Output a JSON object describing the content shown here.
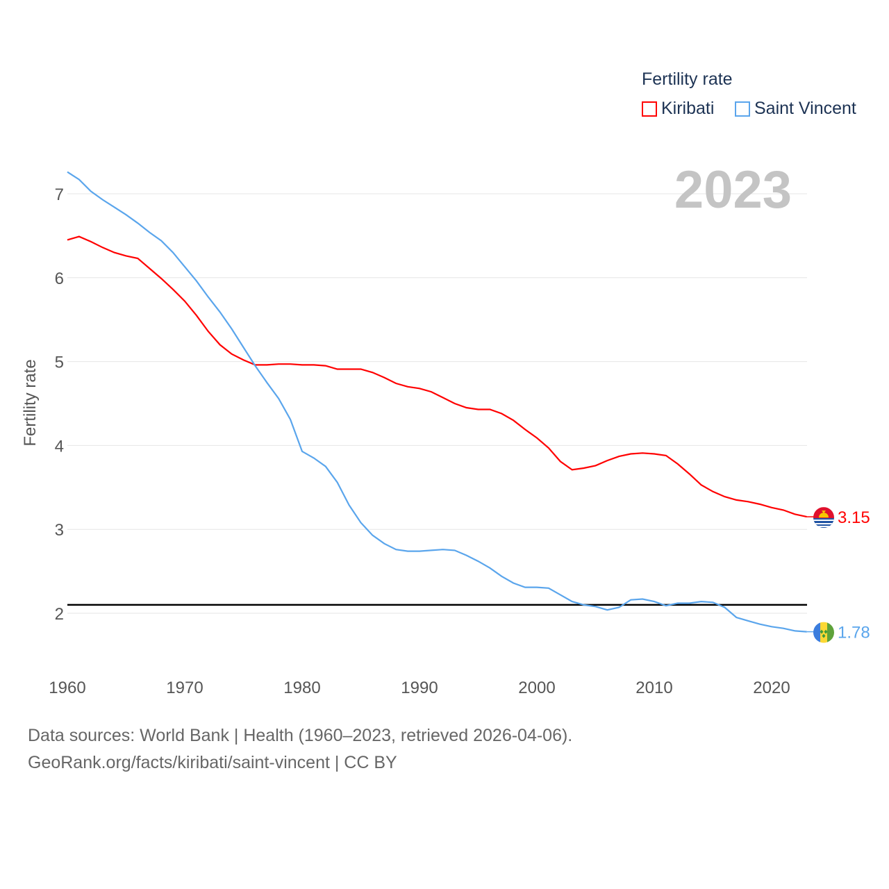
{
  "chart_data": {
    "type": "line",
    "title": "",
    "year_label": "2023",
    "xlabel": "",
    "ylabel": "Fertility rate",
    "xlim": [
      1960,
      2023
    ],
    "ylim": [
      1.5,
      7.5
    ],
    "x_ticks": [
      1960,
      1970,
      1980,
      1990,
      2000,
      2010,
      2020
    ],
    "y_ticks": [
      2,
      3,
      4,
      5,
      6,
      7
    ],
    "grid": true,
    "legend": {
      "title": "Fertility rate",
      "placement": "top-right"
    },
    "reference_line": {
      "value": 2.1,
      "color": "#000000"
    },
    "x": [
      1960,
      1961,
      1962,
      1963,
      1964,
      1965,
      1966,
      1967,
      1968,
      1969,
      1970,
      1971,
      1972,
      1973,
      1974,
      1975,
      1976,
      1977,
      1978,
      1979,
      1980,
      1981,
      1982,
      1983,
      1984,
      1985,
      1986,
      1987,
      1988,
      1989,
      1990,
      1991,
      1992,
      1993,
      1994,
      1995,
      1996,
      1997,
      1998,
      1999,
      2000,
      2001,
      2002,
      2003,
      2004,
      2005,
      2006,
      2007,
      2008,
      2009,
      2010,
      2011,
      2012,
      2013,
      2014,
      2015,
      2016,
      2017,
      2018,
      2019,
      2020,
      2021,
      2022,
      2023
    ],
    "series": [
      {
        "name": "Kiribati",
        "color": "#ff0000",
        "end_label": "3.15",
        "flag": "kiribati-flag",
        "values": [
          6.45,
          6.49,
          6.43,
          6.36,
          6.3,
          6.26,
          6.23,
          6.11,
          5.99,
          5.86,
          5.72,
          5.55,
          5.36,
          5.2,
          5.09,
          5.02,
          4.96,
          4.96,
          4.97,
          4.97,
          4.96,
          4.96,
          4.95,
          4.91,
          4.91,
          4.91,
          4.87,
          4.81,
          4.74,
          4.7,
          4.68,
          4.64,
          4.57,
          4.5,
          4.45,
          4.43,
          4.43,
          4.38,
          4.3,
          4.19,
          4.09,
          3.97,
          3.81,
          3.71,
          3.73,
          3.76,
          3.82,
          3.87,
          3.9,
          3.91,
          3.9,
          3.88,
          3.78,
          3.66,
          3.53,
          3.45,
          3.39,
          3.35,
          3.33,
          3.3,
          3.26,
          3.23,
          3.18,
          3.15
        ]
      },
      {
        "name": "Saint Vincent",
        "color": "#5aa5ec",
        "end_label": "1.78",
        "flag": "saint-vincent-flag",
        "values": [
          7.26,
          7.17,
          7.03,
          6.93,
          6.84,
          6.75,
          6.65,
          6.54,
          6.44,
          6.3,
          6.13,
          5.96,
          5.77,
          5.59,
          5.39,
          5.17,
          4.95,
          4.75,
          4.56,
          4.31,
          3.93,
          3.85,
          3.75,
          3.56,
          3.29,
          3.08,
          2.93,
          2.83,
          2.76,
          2.74,
          2.74,
          2.75,
          2.76,
          2.75,
          2.69,
          2.62,
          2.54,
          2.44,
          2.36,
          2.31,
          2.31,
          2.3,
          2.22,
          2.14,
          2.1,
          2.08,
          2.04,
          2.07,
          2.16,
          2.17,
          2.14,
          2.09,
          2.12,
          2.12,
          2.14,
          2.13,
          2.07,
          1.95,
          1.91,
          1.87,
          1.84,
          1.82,
          1.79,
          1.78
        ]
      }
    ]
  },
  "footer": {
    "line1": "Data sources: World Bank | Health (1960–2023, retrieved 2026-04-06).",
    "line2": "GeoRank.org/facts/kiribati/saint-vincent | CC BY"
  }
}
